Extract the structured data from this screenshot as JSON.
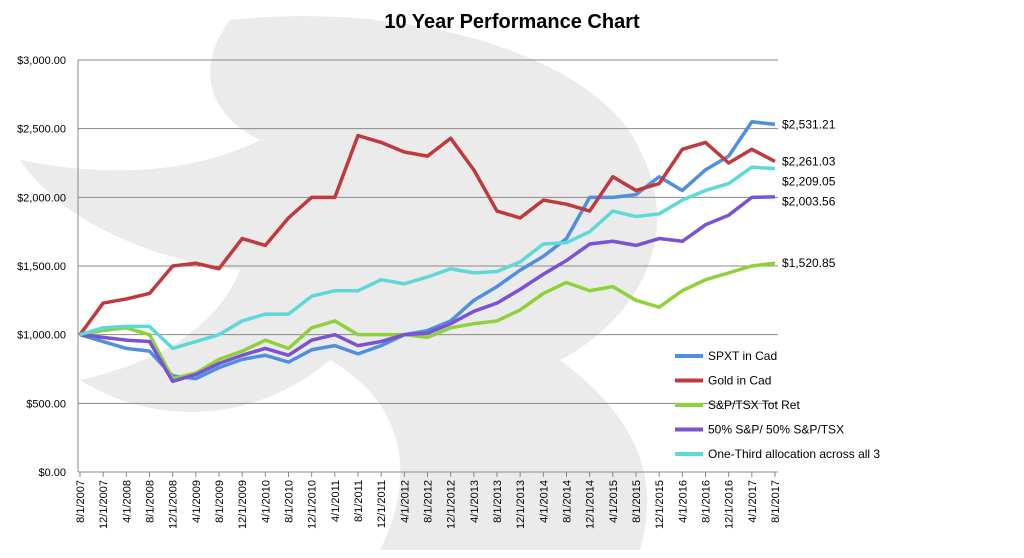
{
  "chart_data": {
    "type": "line",
    "title": "10 Year Performance Chart",
    "categories": [
      "8/1/2007",
      "12/1/2007",
      "4/1/2008",
      "8/1/2008",
      "12/1/2008",
      "4/1/2009",
      "8/1/2009",
      "12/1/2009",
      "4/1/2010",
      "8/1/2010",
      "12/1/2010",
      "4/1/2011",
      "8/1/2011",
      "12/1/2011",
      "4/1/2012",
      "8/1/2012",
      "12/1/2012",
      "4/1/2013",
      "8/1/2013",
      "12/1/2013",
      "4/1/2014",
      "8/1/2014",
      "12/1/2014",
      "4/1/2015",
      "8/1/2015",
      "12/1/2015",
      "4/1/2016",
      "8/1/2016",
      "12/1/2016",
      "4/1/2017",
      "8/1/2017"
    ],
    "ylim": [
      0,
      3000
    ],
    "yticks": [
      {
        "value": 0,
        "label": "$0.00"
      },
      {
        "value": 500,
        "label": "$500.00"
      },
      {
        "value": 1000,
        "label": "$1,000.00"
      },
      {
        "value": 1500,
        "label": "$1,500.00"
      },
      {
        "value": 2000,
        "label": "$2,000.00"
      },
      {
        "value": 2500,
        "label": "$2,500.00"
      },
      {
        "value": 3000,
        "label": "$3,000.00"
      }
    ],
    "grid": true,
    "legend": "lower-right",
    "series": [
      {
        "name": "SPXT in Cad",
        "color": "#4f8fe0",
        "end_label": "$2,531.21",
        "values": [
          1000,
          950,
          900,
          880,
          700,
          680,
          760,
          820,
          850,
          800,
          890,
          920,
          860,
          920,
          1000,
          1030,
          1100,
          1250,
          1350,
          1470,
          1570,
          1700,
          2000,
          2000,
          2020,
          2150,
          2050,
          2200,
          2300,
          2550,
          2531.21
        ]
      },
      {
        "name": "Gold in Cad",
        "color": "#c0393d",
        "end_label": "$2,261.03",
        "values": [
          1000,
          1230,
          1260,
          1300,
          1500,
          1520,
          1480,
          1700,
          1650,
          1850,
          2000,
          2000,
          2450,
          2400,
          2330,
          2300,
          2430,
          2200,
          1900,
          1850,
          1980,
          1950,
          1900,
          2150,
          2050,
          2100,
          2350,
          2400,
          2250,
          2350,
          2261.03
        ]
      },
      {
        "name": "S&P/TSX Tot Ret",
        "color": "#8fd13a",
        "end_label": "$1,520.85",
        "values": [
          1000,
          1030,
          1050,
          1000,
          680,
          720,
          820,
          880,
          960,
          900,
          1050,
          1100,
          1000,
          1000,
          1000,
          980,
          1050,
          1080,
          1100,
          1180,
          1300,
          1380,
          1320,
          1350,
          1250,
          1200,
          1320,
          1400,
          1450,
          1500,
          1520.85
        ]
      },
      {
        "name": "50% S&P/ 50% S&P/TSX",
        "color": "#7b52d6",
        "end_label": "$2,003.56",
        "values": [
          1000,
          980,
          960,
          950,
          660,
          710,
          790,
          850,
          900,
          850,
          960,
          1000,
          920,
          950,
          1000,
          1010,
          1080,
          1170,
          1230,
          1330,
          1440,
          1540,
          1660,
          1680,
          1650,
          1700,
          1680,
          1800,
          1870,
          2000,
          2003.56
        ]
      },
      {
        "name": "One-Third allocation across all 3",
        "color": "#5fd8d8",
        "end_label": "$2,209.05",
        "values": [
          1000,
          1050,
          1060,
          1060,
          900,
          950,
          1000,
          1100,
          1150,
          1150,
          1280,
          1320,
          1320,
          1400,
          1370,
          1420,
          1480,
          1450,
          1460,
          1530,
          1660,
          1670,
          1750,
          1900,
          1860,
          1880,
          1980,
          2050,
          2100,
          2220,
          2209.05
        ]
      }
    ]
  }
}
